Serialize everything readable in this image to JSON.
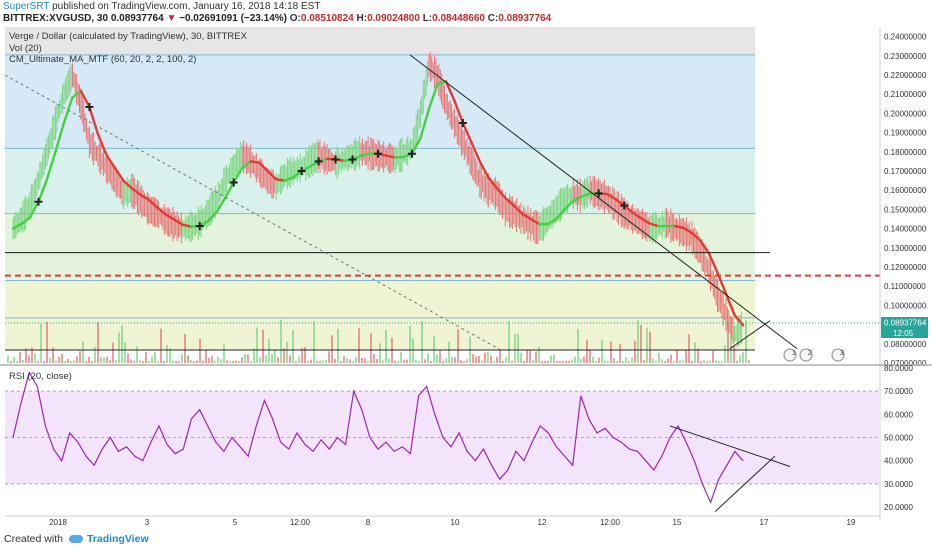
{
  "header": {
    "author": "SuperSRT",
    "published_text": " published on TradingView.com, January 16, 2018 14:18 EST",
    "symbol": "BITTREX:XVGUSD, 30",
    "last": "0.08937764",
    "arrow": "▼",
    "change": "−0.02691091 (−23.14%)",
    "o_label": "O:",
    "o_value": "0.08510824",
    "h_label": "H:",
    "h_value": "0.09024800",
    "l_label": "L:",
    "l_value": "0.08448660",
    "c_label": "C:",
    "c_value": "0.08937764"
  },
  "legend": {
    "title": "Verge / Dollar (calculated by TradingView), 30, BITTREX",
    "vol": "Vol (20)",
    "indicator": "CM_Ultimate_MA_MTF (60, 20, 2, 2, 100, 2)",
    "rsi": "RSI (20, close)"
  },
  "footer": {
    "created_with": "Created with",
    "brand": "TradingView"
  },
  "colors": {
    "fib_blue": "#d6e9f6",
    "fib_teal": "#d9f1ec",
    "fib_green": "#e4f3dc",
    "fib_yellow": "#eff5d4",
    "candle_up": "#7cd380",
    "candle_down": "#e57373",
    "ma_red": "#e53935",
    "ma_green": "#43d143",
    "rsi_line": "#9c27b0",
    "rsi_band": "#f3e3fb",
    "price_tag": "#26a69a"
  },
  "chart_data": [
    {
      "type": "candlestick",
      "title": "Verge / Dollar (calculated by TradingView), 30, BITTREX",
      "x_tick_labels": [
        "2018",
        "3",
        "5",
        "12:00",
        "8",
        "10",
        "12",
        "12:00",
        "15",
        "17",
        "19"
      ],
      "y_tick_labels": [
        "0.24000000",
        "0.23000000",
        "0.22000000",
        "0.21000000",
        "0.20000000",
        "0.19000000",
        "0.18000000",
        "0.17000000",
        "0.16000000",
        "0.15000000",
        "0.14000000",
        "0.13000000",
        "0.12000000",
        "0.11000000",
        "0.10000000",
        "0.09000000",
        "0.08000000",
        "0.07000000"
      ],
      "ylim": [
        0.07,
        0.245
      ],
      "current_price_label": "0.08937764",
      "countdown_label": "12:05",
      "fib_levels": [
        0.2305,
        0.1818,
        0.1478,
        0.1275,
        0.113,
        0.0935,
        0.0768
      ],
      "horizontal_lines": [
        0.1275,
        0.1155,
        0.0768
      ],
      "close_series": [
        0.14,
        0.145,
        0.152,
        0.165,
        0.18,
        0.195,
        0.21,
        0.22,
        0.205,
        0.185,
        0.178,
        0.172,
        0.165,
        0.158,
        0.16,
        0.155,
        0.15,
        0.148,
        0.144,
        0.142,
        0.14,
        0.141,
        0.143,
        0.148,
        0.155,
        0.165,
        0.172,
        0.178,
        0.175,
        0.17,
        0.165,
        0.162,
        0.168,
        0.17,
        0.172,
        0.175,
        0.178,
        0.176,
        0.174,
        0.176,
        0.178,
        0.18,
        0.179,
        0.178,
        0.177,
        0.176,
        0.179,
        0.182,
        0.2,
        0.225,
        0.22,
        0.205,
        0.195,
        0.185,
        0.175,
        0.165,
        0.16,
        0.158,
        0.15,
        0.148,
        0.145,
        0.142,
        0.14,
        0.145,
        0.15,
        0.155,
        0.158,
        0.157,
        0.16,
        0.158,
        0.156,
        0.152,
        0.148,
        0.145,
        0.143,
        0.14,
        0.141,
        0.143,
        0.14,
        0.138,
        0.135,
        0.128,
        0.118,
        0.105,
        0.095,
        0.085,
        0.089
      ],
      "tags": [
        1,
        2,
        3
      ]
    },
    {
      "type": "line",
      "title": "RSI (20, close)",
      "y_tick_labels": [
        "80.0000",
        "70.0000",
        "60.0000",
        "50.0000",
        "40.0000",
        "30.0000",
        "20.0000"
      ],
      "ylim": [
        17,
        80
      ],
      "band": [
        30,
        70
      ],
      "values": [
        50,
        65,
        78,
        72,
        55,
        45,
        40,
        52,
        48,
        42,
        38,
        45,
        50,
        44,
        46,
        42,
        40,
        48,
        55,
        47,
        43,
        45,
        58,
        62,
        55,
        48,
        44,
        50,
        46,
        42,
        55,
        66,
        58,
        48,
        45,
        52,
        47,
        44,
        49,
        45,
        50,
        47,
        70,
        62,
        50,
        45,
        48,
        44,
        46,
        43,
        68,
        72,
        60,
        50,
        46,
        52,
        44,
        40,
        45,
        38,
        32,
        36,
        44,
        40,
        48,
        55,
        52,
        46,
        42,
        38,
        68,
        58,
        52,
        54,
        50,
        48,
        45,
        44,
        40,
        36,
        42,
        50,
        55,
        48,
        40,
        30,
        22,
        32,
        38,
        44,
        40
      ]
    }
  ]
}
